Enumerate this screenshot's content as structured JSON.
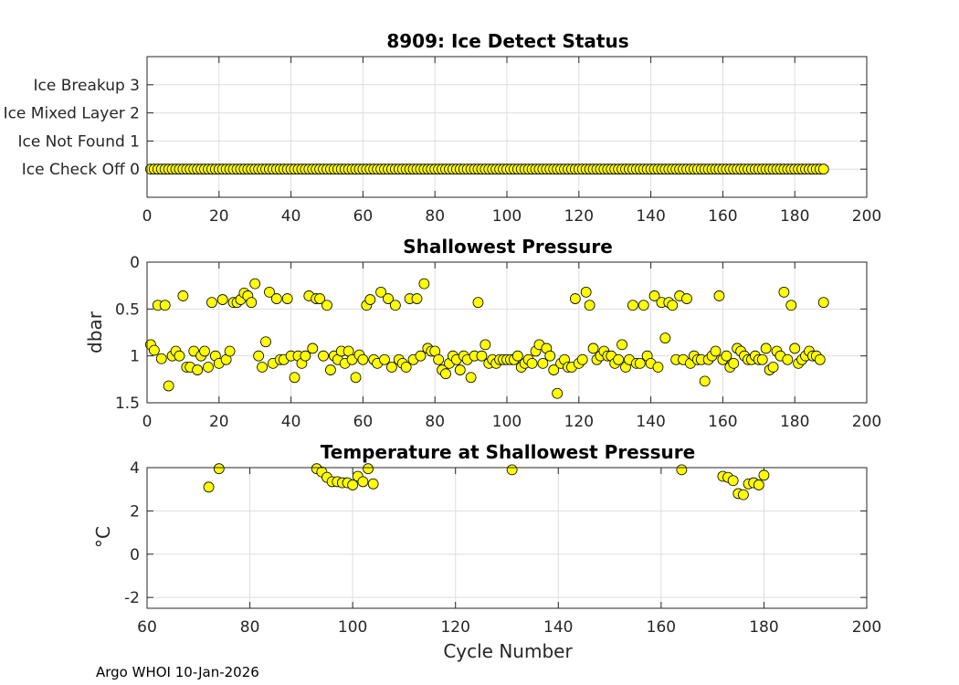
{
  "footer": "Argo WHOI 10-Jan-2026",
  "colors": {
    "marker_fill": "#ffff00",
    "marker_edge": "#000000"
  },
  "chart_data": [
    {
      "type": "scatter",
      "title": "8909: Ice Detect Status",
      "xlabel": "",
      "ylabel": "",
      "xlim": [
        0,
        200
      ],
      "ylim": [
        -1,
        4
      ],
      "y_reverse": false,
      "grid": true,
      "xticks": [
        0,
        20,
        40,
        60,
        80,
        100,
        120,
        140,
        160,
        180,
        200
      ],
      "yticks": [
        0,
        1,
        2,
        3
      ],
      "ytick_labels": [
        "Ice Check Off 0",
        "Ice Not Found 1",
        "Ice Mixed Layer 2",
        "Ice Breakup 3"
      ],
      "x": "cycles 1 through 188",
      "y": "all values 0",
      "n_points": 188,
      "constant_y": 0
    },
    {
      "type": "scatter",
      "title": "Shallowest Pressure",
      "xlabel": "",
      "ylabel": "dbar",
      "xlim": [
        0,
        200
      ],
      "ylim": [
        0,
        1.5
      ],
      "y_reverse": true,
      "grid": true,
      "xticks": [
        0,
        20,
        40,
        60,
        80,
        100,
        120,
        140,
        160,
        180,
        200
      ],
      "yticks": [
        0,
        0.5,
        1,
        1.5
      ],
      "ytick_labels": [
        "0",
        "0.5",
        "1",
        "1.5"
      ],
      "points": [
        [
          1,
          0.88
        ],
        [
          2,
          0.94
        ],
        [
          3,
          0.46
        ],
        [
          4,
          1.03
        ],
        [
          5,
          0.46
        ],
        [
          6,
          1.32
        ],
        [
          7,
          1.0
        ],
        [
          8,
          0.95
        ],
        [
          9,
          1.0
        ],
        [
          10,
          0.36
        ],
        [
          11,
          1.12
        ],
        [
          12,
          1.12
        ],
        [
          13,
          0.95
        ],
        [
          14,
          1.15
        ],
        [
          15,
          1.0
        ],
        [
          16,
          0.95
        ],
        [
          17,
          1.12
        ],
        [
          18,
          0.43
        ],
        [
          19,
          1.0
        ],
        [
          20,
          1.08
        ],
        [
          21,
          0.4
        ],
        [
          22,
          1.04
        ],
        [
          23,
          0.95
        ],
        [
          24,
          0.43
        ],
        [
          25,
          0.43
        ],
        [
          26,
          0.4
        ],
        [
          27,
          0.33
        ],
        [
          28,
          0.36
        ],
        [
          29,
          0.43
        ],
        [
          30,
          0.23
        ],
        [
          31,
          1.0
        ],
        [
          32,
          1.12
        ],
        [
          33,
          0.85
        ],
        [
          34,
          0.32
        ],
        [
          35,
          1.08
        ],
        [
          36,
          0.39
        ],
        [
          37,
          1.04
        ],
        [
          38,
          1.04
        ],
        [
          39,
          0.39
        ],
        [
          40,
          1.0
        ],
        [
          41,
          1.23
        ],
        [
          42,
          1.0
        ],
        [
          43,
          1.08
        ],
        [
          44,
          1.0
        ],
        [
          45,
          0.36
        ],
        [
          46,
          0.92
        ],
        [
          47,
          0.39
        ],
        [
          48,
          0.39
        ],
        [
          49,
          1.0
        ],
        [
          50,
          0.46
        ],
        [
          51,
          1.15
        ],
        [
          52,
          1.0
        ],
        [
          53,
          1.04
        ],
        [
          54,
          0.95
        ],
        [
          55,
          1.08
        ],
        [
          56,
          0.95
        ],
        [
          57,
          1.04
        ],
        [
          58,
          1.23
        ],
        [
          59,
          0.99
        ],
        [
          60,
          1.04
        ],
        [
          61,
          0.46
        ],
        [
          62,
          0.4
        ],
        [
          63,
          1.04
        ],
        [
          64,
          1.08
        ],
        [
          65,
          0.32
        ],
        [
          66,
          1.04
        ],
        [
          67,
          0.39
        ],
        [
          68,
          1.12
        ],
        [
          69,
          0.46
        ],
        [
          70,
          1.04
        ],
        [
          71,
          1.08
        ],
        [
          72,
          1.12
        ],
        [
          73,
          0.39
        ],
        [
          74,
          1.04
        ],
        [
          75,
          0.39
        ],
        [
          76,
          1.0
        ],
        [
          77,
          0.23
        ],
        [
          78,
          0.92
        ],
        [
          79,
          0.95
        ],
        [
          80,
          0.95
        ],
        [
          81,
          1.04
        ],
        [
          82,
          1.15
        ],
        [
          83,
          1.19
        ],
        [
          84,
          1.08
        ],
        [
          85,
          1.0
        ],
        [
          86,
          1.04
        ],
        [
          87,
          1.15
        ],
        [
          88,
          1.0
        ],
        [
          89,
          1.04
        ],
        [
          90,
          1.23
        ],
        [
          91,
          1.0
        ],
        [
          92,
          0.43
        ],
        [
          93,
          1.0
        ],
        [
          94,
          0.88
        ],
        [
          95,
          1.08
        ],
        [
          96,
          1.04
        ],
        [
          97,
          1.08
        ],
        [
          98,
          1.04
        ],
        [
          99,
          1.04
        ],
        [
          100,
          1.04
        ],
        [
          101,
          1.04
        ],
        [
          102,
          1.04
        ],
        [
          103,
          1.0
        ],
        [
          104,
          1.12
        ],
        [
          105,
          1.08
        ],
        [
          106,
          1.04
        ],
        [
          107,
          1.08
        ],
        [
          108,
          0.95
        ],
        [
          109,
          0.88
        ],
        [
          110,
          1.08
        ],
        [
          111,
          0.92
        ],
        [
          112,
          1.0
        ],
        [
          113,
          1.15
        ],
        [
          114,
          1.4
        ],
        [
          115,
          1.08
        ],
        [
          116,
          1.04
        ],
        [
          117,
          1.12
        ],
        [
          118,
          1.12
        ],
        [
          119,
          0.39
        ],
        [
          120,
          1.08
        ],
        [
          121,
          1.04
        ],
        [
          122,
          0.32
        ],
        [
          123,
          0.46
        ],
        [
          124,
          0.92
        ],
        [
          125,
          1.04
        ],
        [
          126,
          1.0
        ],
        [
          127,
          0.95
        ],
        [
          128,
          1.0
        ],
        [
          129,
          1.0
        ],
        [
          130,
          1.08
        ],
        [
          131,
          1.04
        ],
        [
          132,
          0.88
        ],
        [
          133,
          1.12
        ],
        [
          134,
          1.04
        ],
        [
          135,
          0.46
        ],
        [
          136,
          1.08
        ],
        [
          137,
          1.08
        ],
        [
          138,
          0.46
        ],
        [
          139,
          1.0
        ],
        [
          140,
          1.08
        ],
        [
          141,
          0.36
        ],
        [
          142,
          1.12
        ],
        [
          143,
          0.43
        ],
        [
          144,
          0.81
        ],
        [
          145,
          0.43
        ],
        [
          146,
          0.46
        ],
        [
          147,
          1.04
        ],
        [
          148,
          0.36
        ],
        [
          149,
          1.04
        ],
        [
          150,
          0.39
        ],
        [
          151,
          1.08
        ],
        [
          152,
          1.0
        ],
        [
          153,
          1.04
        ],
        [
          154,
          1.04
        ],
        [
          155,
          1.27
        ],
        [
          156,
          1.04
        ],
        [
          157,
          1.0
        ],
        [
          158,
          0.95
        ],
        [
          159,
          0.36
        ],
        [
          160,
          1.04
        ],
        [
          161,
          1.0
        ],
        [
          162,
          1.12
        ],
        [
          163,
          1.08
        ],
        [
          164,
          0.92
        ],
        [
          165,
          0.95
        ],
        [
          166,
          1.0
        ],
        [
          167,
          1.04
        ],
        [
          168,
          1.04
        ],
        [
          169,
          1.0
        ],
        [
          170,
          1.04
        ],
        [
          171,
          1.04
        ],
        [
          172,
          0.92
        ],
        [
          173,
          1.15
        ],
        [
          174,
          1.12
        ],
        [
          175,
          0.95
        ],
        [
          176,
          1.0
        ],
        [
          177,
          0.32
        ],
        [
          178,
          1.04
        ],
        [
          179,
          0.46
        ],
        [
          180,
          0.92
        ],
        [
          181,
          1.08
        ],
        [
          182,
          1.04
        ],
        [
          183,
          1.0
        ],
        [
          184,
          0.95
        ],
        [
          185,
          1.0
        ],
        [
          186,
          1.0
        ],
        [
          187,
          1.04
        ],
        [
          188,
          0.43
        ]
      ]
    },
    {
      "type": "scatter",
      "title": "Temperature at Shallowest Pressure",
      "xlabel": "Cycle Number",
      "ylabel": "°C",
      "xlim": [
        60,
        200
      ],
      "ylim": [
        -2.5,
        4
      ],
      "y_reverse": false,
      "grid": true,
      "xticks": [
        60,
        80,
        100,
        120,
        140,
        160,
        180,
        200
      ],
      "yticks": [
        -2,
        0,
        2,
        4
      ],
      "ytick_labels": [
        "-2",
        "0",
        "2",
        "4"
      ],
      "points": [
        [
          72,
          3.1
        ],
        [
          74,
          3.95
        ],
        [
          93,
          3.95
        ],
        [
          94,
          3.8
        ],
        [
          95,
          3.55
        ],
        [
          96,
          3.35
        ],
        [
          97,
          3.35
        ],
        [
          98,
          3.3
        ],
        [
          99,
          3.3
        ],
        [
          100,
          3.2
        ],
        [
          101,
          3.6
        ],
        [
          102,
          3.35
        ],
        [
          103,
          3.95
        ],
        [
          104,
          3.25
        ],
        [
          131,
          3.9
        ],
        [
          164,
          3.9
        ],
        [
          172,
          3.6
        ],
        [
          173,
          3.55
        ],
        [
          174,
          3.4
        ],
        [
          175,
          2.8
        ],
        [
          176,
          2.75
        ],
        [
          177,
          3.25
        ],
        [
          178,
          3.3
        ],
        [
          179,
          3.2
        ],
        [
          180,
          3.65
        ]
      ]
    }
  ]
}
